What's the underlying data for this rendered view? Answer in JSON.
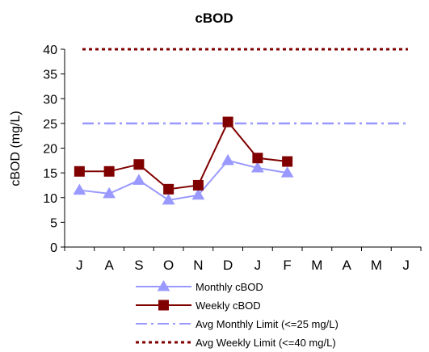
{
  "chart_data": {
    "type": "line",
    "title": "cBOD",
    "ylabel": "cBOD (mg/L)",
    "xlabel": "",
    "categories": [
      "J",
      "A",
      "S",
      "O",
      "N",
      "D",
      "J",
      "F",
      "M",
      "A",
      "M",
      "J"
    ],
    "ylim": [
      0,
      40
    ],
    "yticks": [
      0,
      5,
      10,
      15,
      20,
      25,
      30,
      35,
      40
    ],
    "grid": false,
    "legend_position": "bottom",
    "series": [
      {
        "name": "Monthly cBOD",
        "values": [
          11.5,
          10.8,
          13.5,
          9.5,
          10.5,
          17.5,
          16.0,
          15.0,
          null,
          null,
          null,
          null
        ],
        "color": "#9999ff",
        "marker": "triangle",
        "line": "solid"
      },
      {
        "name": "Weekly cBOD",
        "values": [
          15.3,
          15.3,
          16.7,
          11.7,
          12.5,
          25.3,
          18.0,
          17.3,
          null,
          null,
          null,
          null
        ],
        "color": "#800000",
        "marker": "square",
        "line": "solid"
      },
      {
        "name": "Avg Monthly Limit (<=25 mg/L)",
        "values": [
          25,
          25,
          25,
          25,
          25,
          25,
          25,
          25,
          25,
          25,
          25,
          25
        ],
        "color": "#9999ff",
        "marker": "none",
        "line": "dashdot"
      },
      {
        "name": "Avg Weekly Limit (<=40 mg/L)",
        "values": [
          40,
          40,
          40,
          40,
          40,
          40,
          40,
          40,
          40,
          40,
          40,
          40
        ],
        "color": "#800000",
        "marker": "none",
        "line": "dotted"
      }
    ]
  }
}
